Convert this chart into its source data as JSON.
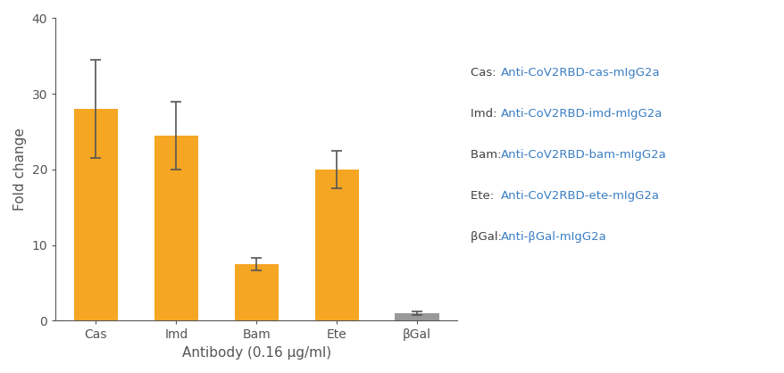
{
  "categories": [
    "Cas",
    "Imd",
    "Bam",
    "Ete",
    "βGal"
  ],
  "values": [
    28.0,
    24.5,
    7.5,
    20.0,
    1.0
  ],
  "errors": [
    6.5,
    4.5,
    0.8,
    2.5,
    0.2
  ],
  "bar_colors": [
    "#F5A623",
    "#F5A623",
    "#F5A623",
    "#F5A623",
    "#999999"
  ],
  "ylabel": "Fold change",
  "xlabel": "Antibody (0.16 μg/ml)",
  "ylim": [
    0,
    40
  ],
  "yticks": [
    0,
    10,
    20,
    30,
    40
  ],
  "background_color": "#ffffff",
  "axis_color": "#555555",
  "legend_labels": [
    [
      "Cas: ",
      "Anti-CoV2RBD-cas-mIgG2a"
    ],
    [
      "Imd: ",
      "Anti-CoV2RBD-imd-mIgG2a"
    ],
    [
      "Bam: ",
      "Anti-CoV2RBD-bam-mIgG2a"
    ],
    [
      "Ete: ",
      "Anti-CoV2RBD-ete-mIgG2a"
    ],
    [
      "βGal: ",
      "Anti-βGal-mIgG2a"
    ]
  ],
  "legend_key_color": "#404040",
  "legend_value_color": "#3B7FC4",
  "tick_label_color": "#555555",
  "bar_edge_color": "none",
  "errorbar_color": "#555555",
  "fontsize_axis_label": 11,
  "fontsize_tick": 10,
  "fontsize_legend": 9.5
}
